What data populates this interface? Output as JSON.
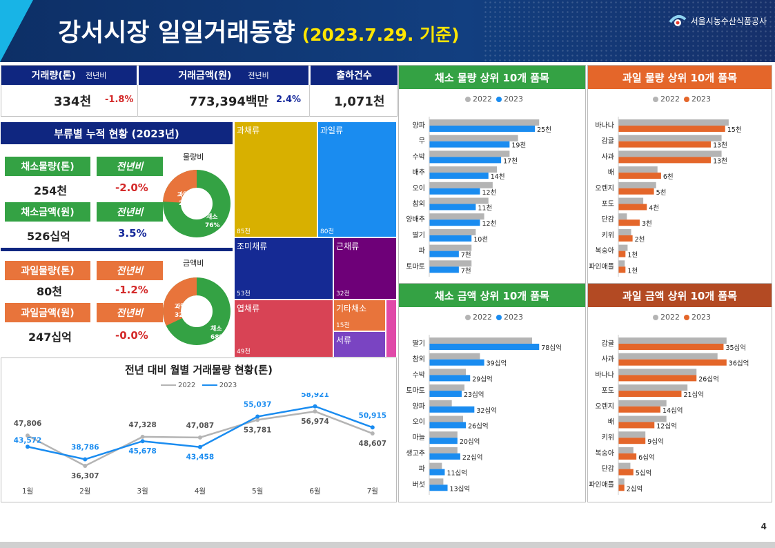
{
  "header": {
    "title": "강서시장 일일거래동향",
    "date": "(2023.7.29. 기준)",
    "org": "서울시농수산식품공사"
  },
  "kpi": {
    "vol_label": "거래량(톤)",
    "vol_yoy_label": "전년비",
    "vol_value": "334천",
    "vol_yoy": "-1.8%",
    "amt_label": "거래금액(원)",
    "amt_yoy_label": "전년비",
    "amt_value": "773,394백만",
    "amt_yoy": "2.4%",
    "cnt_label": "출하건수",
    "cnt_value": "1,071천"
  },
  "category": {
    "title": "부류별 누적 현황 (2023년)",
    "veg_vol_label": "채소물량(톤)",
    "veg_vol_yoy_label": "전년비",
    "veg_vol": "254천",
    "veg_vol_yoy": "-2.0%",
    "veg_amt_label": "채소금액(원)",
    "veg_amt_yoy_label": "전년비",
    "veg_amt": "526십억",
    "veg_amt_yoy": "3.5%",
    "fruit_vol_label": "과일물량(톤)",
    "fruit_vol_yoy_label": "전년비",
    "fruit_vol": "80천",
    "fruit_vol_yoy": "-1.2%",
    "fruit_amt_label": "과일금액(원)",
    "fruit_amt_yoy_label": "전년비",
    "fruit_amt": "247십억",
    "fruit_amt_yoy": "-0.0%",
    "donut1_title": "물량비",
    "donut1_fruit": "과일\n24%",
    "donut1_veg": "채소\n76%",
    "donut2_title": "금액비",
    "donut2_fruit": "과일\n32%",
    "donut2_veg": "채소\n68%"
  },
  "treemap": [
    {
      "name": "과채류",
      "value": "85천",
      "color": "#d8b000"
    },
    {
      "name": "과일류",
      "value": "80천",
      "color": "#1a8cf0"
    },
    {
      "name": "조미채류",
      "value": "53천",
      "color": "#152a94"
    },
    {
      "name": "근채류",
      "value": "32천",
      "color": "#6e0078"
    },
    {
      "name": "엽채류",
      "value": "49천",
      "color": "#d84355"
    },
    {
      "name": "기타채소",
      "value": "15천",
      "color": "#e8743b"
    },
    {
      "name": "서류",
      "value": "",
      "color": "#7a44c2"
    },
    {
      "name": "",
      "value": "",
      "color": "#e04aa8"
    }
  ],
  "colors": {
    "gray": "#b4b4b4",
    "blue": "#1a8cf0",
    "orange": "#e4662a",
    "green": "#34a244",
    "brown": "#b34a23",
    "navy": "#0f2680"
  },
  "chart_data": [
    {
      "type": "line",
      "title": "전년 대비 월별 거래물량 현황(톤)",
      "categories": [
        "1월",
        "2월",
        "3월",
        "4월",
        "5월",
        "6월",
        "7월"
      ],
      "series": [
        {
          "name": "2022",
          "values": [
            47806,
            36307,
            47328,
            47087,
            53781,
            56974,
            48607
          ]
        },
        {
          "name": "2023",
          "values": [
            43572,
            38786,
            45678,
            43458,
            55037,
            58921,
            50915
          ]
        }
      ],
      "labels2022": [
        "47,806",
        "36,307",
        "47,328",
        "47,087",
        "53,781",
        "56,974",
        "48,607"
      ],
      "labels2023": [
        "43,572",
        "38,786",
        "45,678",
        "43,458",
        "55,037",
        "58,921",
        "50,915"
      ],
      "legend": "top"
    },
    {
      "type": "bar",
      "title": "채소 물량 상위 10개 품목",
      "unit": "천",
      "categories": [
        "양파",
        "무",
        "수박",
        "배추",
        "오이",
        "참외",
        "양배추",
        "딸기",
        "파",
        "토마토"
      ],
      "series": [
        {
          "name": "2022",
          "values": [
            26,
            21,
            19,
            16,
            15,
            14,
            13,
            11,
            10,
            10
          ]
        },
        {
          "name": "2023",
          "values": [
            25,
            19,
            17,
            14,
            12,
            11,
            12,
            10,
            7,
            7
          ]
        }
      ],
      "labels": [
        "25천",
        "19천",
        "17천",
        "14천",
        "12천",
        "11천",
        "12천",
        "10천",
        "7천",
        "7천"
      ]
    },
    {
      "type": "bar",
      "title": "과일 물량 상위 10개 품목",
      "unit": "천",
      "categories": [
        "바나나",
        "감귤",
        "사과",
        "배",
        "오렌지",
        "포도",
        "단감",
        "키위",
        "복숭아",
        "파인애플"
      ],
      "series": [
        {
          "name": "2022",
          "values": [
            15.5,
            14.5,
            14.5,
            5.5,
            5.3,
            3.5,
            1.2,
            1.8,
            1.3,
            0.9
          ]
        },
        {
          "name": "2023",
          "values": [
            15,
            13,
            13,
            6,
            5,
            4,
            3,
            2,
            1,
            1
          ]
        }
      ],
      "labels": [
        "15천",
        "13천",
        "13천",
        "6천",
        "5천",
        "4천",
        "3천",
        "2천",
        "1천",
        "1천"
      ]
    },
    {
      "type": "bar",
      "title": "채소 금액 상위 10개 품목",
      "unit": "십억",
      "categories": [
        "딸기",
        "참외",
        "수박",
        "토마토",
        "양파",
        "오이",
        "마늘",
        "생고추",
        "파",
        "버섯"
      ],
      "series": [
        {
          "name": "2022",
          "values": [
            73,
            36,
            26,
            25,
            16,
            24,
            20,
            20,
            9,
            10
          ]
        },
        {
          "name": "2023",
          "values": [
            78,
            39,
            29,
            23,
            32,
            26,
            20,
            22,
            11,
            13
          ]
        }
      ],
      "labels": [
        "78십억",
        "39십억",
        "29십억",
        "23십억",
        "32십억",
        "26십억",
        "20십억",
        "22십억",
        "11십억",
        "13십억"
      ]
    },
    {
      "type": "bar",
      "title": "과일 금액 상위 10개 품목",
      "unit": "십억",
      "categories": [
        "감귤",
        "사과",
        "바나나",
        "포도",
        "오렌지",
        "배",
        "키위",
        "복숭아",
        "단감",
        "파인애플"
      ],
      "series": [
        {
          "name": "2022",
          "values": [
            36,
            33,
            26,
            23,
            16,
            16,
            9,
            5,
            4,
            2
          ]
        },
        {
          "name": "2023",
          "values": [
            35,
            36,
            26,
            21,
            14,
            12,
            9,
            6,
            5,
            2
          ]
        }
      ],
      "labels": [
        "35십억",
        "36십억",
        "26십억",
        "21십억",
        "14십억",
        "12십억",
        "9십억",
        "6십억",
        "5십억",
        "2십억"
      ]
    }
  ],
  "legend": {
    "y2022": "2022",
    "y2023": "2023"
  },
  "page": "4"
}
